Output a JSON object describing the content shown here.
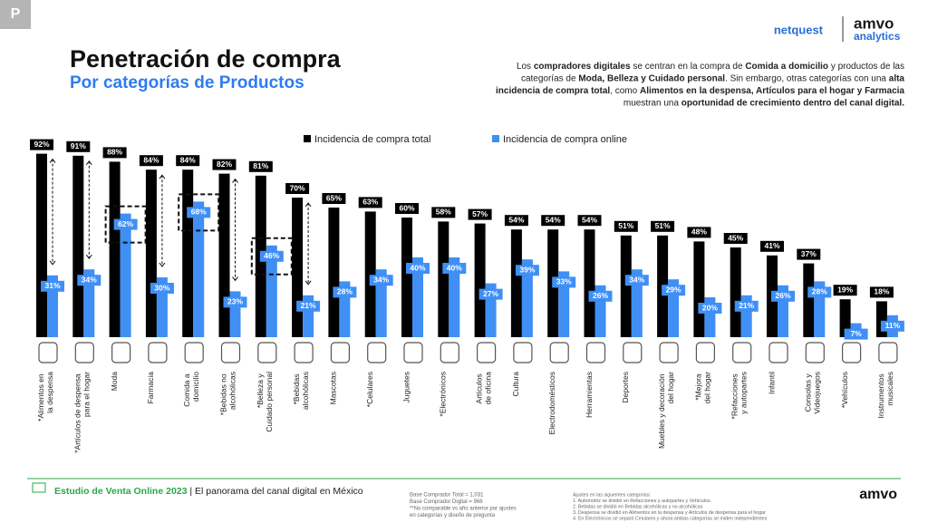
{
  "badge": "P",
  "logos": {
    "netquest": "netquest",
    "amvo": "amvo",
    "analytics": "analytics",
    "footer_amvo": "amvo"
  },
  "header": {
    "title": "Penetración de compra",
    "subtitle": "Por categorías de Productos",
    "description": [
      {
        "text": "Los ",
        "bold": false
      },
      {
        "text": "compradores digitales",
        "bold": true
      },
      {
        "text": " se centran en la compra de ",
        "bold": false
      },
      {
        "text": "Comida a domicilio",
        "bold": true
      },
      {
        "text": " y productos de las categorías de ",
        "bold": false
      },
      {
        "text": "Moda, Belleza y Cuidado personal",
        "bold": true
      },
      {
        "text": ". Sin embargo, otras categorías con una ",
        "bold": false
      },
      {
        "text": "alta incidencia de compra total",
        "bold": true
      },
      {
        "text": ", como ",
        "bold": false
      },
      {
        "text": "Alimentos en la despensa, Artículos para el hogar y Farmacia",
        "bold": true
      },
      {
        "text": " muestran una ",
        "bold": false
      },
      {
        "text": "oportunidad de crecimiento dentro del canal digital.",
        "bold": true
      }
    ]
  },
  "chart_data": {
    "type": "bar",
    "categories": [
      "*Alimentos en la despensa",
      "*Artículos de despensa para el hogar",
      "Moda",
      "Farmacia",
      "Comida a domicilio",
      "*Bebidas no alcohólicas",
      "*Belleza y Cuidado personal",
      "*Bebidas alcohólicas",
      "Mascotas",
      "*Celulares",
      "Juguetes",
      "*Electrónicos",
      "Artículos de oficina",
      "Cultura",
      "Electrodomésticos",
      "Herramientas",
      "Deportes",
      "Muebles y decoración del hogar",
      "*Mejora del hogar",
      "*Refacciones y autopartes",
      "Infantil",
      "Consolas y Videojuegos",
      "*Vehículos",
      "Instrumentos musicales"
    ],
    "series": [
      {
        "name": "Incidencia de compra total",
        "color": "#000000",
        "values": [
          92,
          91,
          88,
          84,
          84,
          82,
          81,
          70,
          65,
          63,
          60,
          58,
          57,
          54,
          54,
          54,
          51,
          51,
          48,
          45,
          41,
          37,
          19,
          18
        ],
        "value_labels": [
          "92%",
          "91%",
          "88%",
          "84%",
          "84%",
          "82%",
          "81%",
          "70%",
          "65%",
          "63%",
          "60%",
          "58%",
          "57%",
          "54%",
          "54%",
          "54%",
          "51%",
          "51%",
          "48%",
          "45%",
          "41%",
          "37%",
          "19%",
          "18%"
        ]
      },
      {
        "name": "Incidencia de compra online",
        "color": "#3f8ff5",
        "values": [
          31,
          34,
          62,
          30,
          68,
          23,
          46,
          21,
          28,
          34,
          40,
          40,
          27,
          39,
          33,
          26,
          34,
          29,
          20,
          21,
          26,
          28,
          7,
          11
        ],
        "value_labels": [
          "31%",
          "34%",
          "62%",
          "30%",
          "68%",
          "23%",
          "46%",
          "21%",
          "28%",
          "34%",
          "40%",
          "40%",
          "27%",
          "39%",
          "33%",
          "26%",
          "34%",
          "29%",
          "20%",
          "21%",
          "26%",
          "28%",
          "7%",
          "11%"
        ]
      }
    ]
  },
  "footer": {
    "study": "Estudio de Venta Online 2023",
    "separator": " | ",
    "subtitle": "El panorama del canal digital en México",
    "bases": [
      "Base Comprador Total = 1,031",
      "Base Comprador Digital = 966",
      "**No comparable vs año anterior por ajustes",
      "en categorías y diseño de pregunta"
    ],
    "adjustments": [
      "Ajustes en las siguientes categorías:",
      "1. Automotriz se dividió en Refacciones y autopartes y Vehículos.",
      "2. Bebidas se dividió en Bebidas alcohólicas y no alcohólicas",
      "3. Despensa se dividió en Alimentos en la despensa y Artículos de despensa para el hogar",
      "4. En Electrónicos se separó Celulares y ahora ambas categorías se miden independientes"
    ]
  }
}
